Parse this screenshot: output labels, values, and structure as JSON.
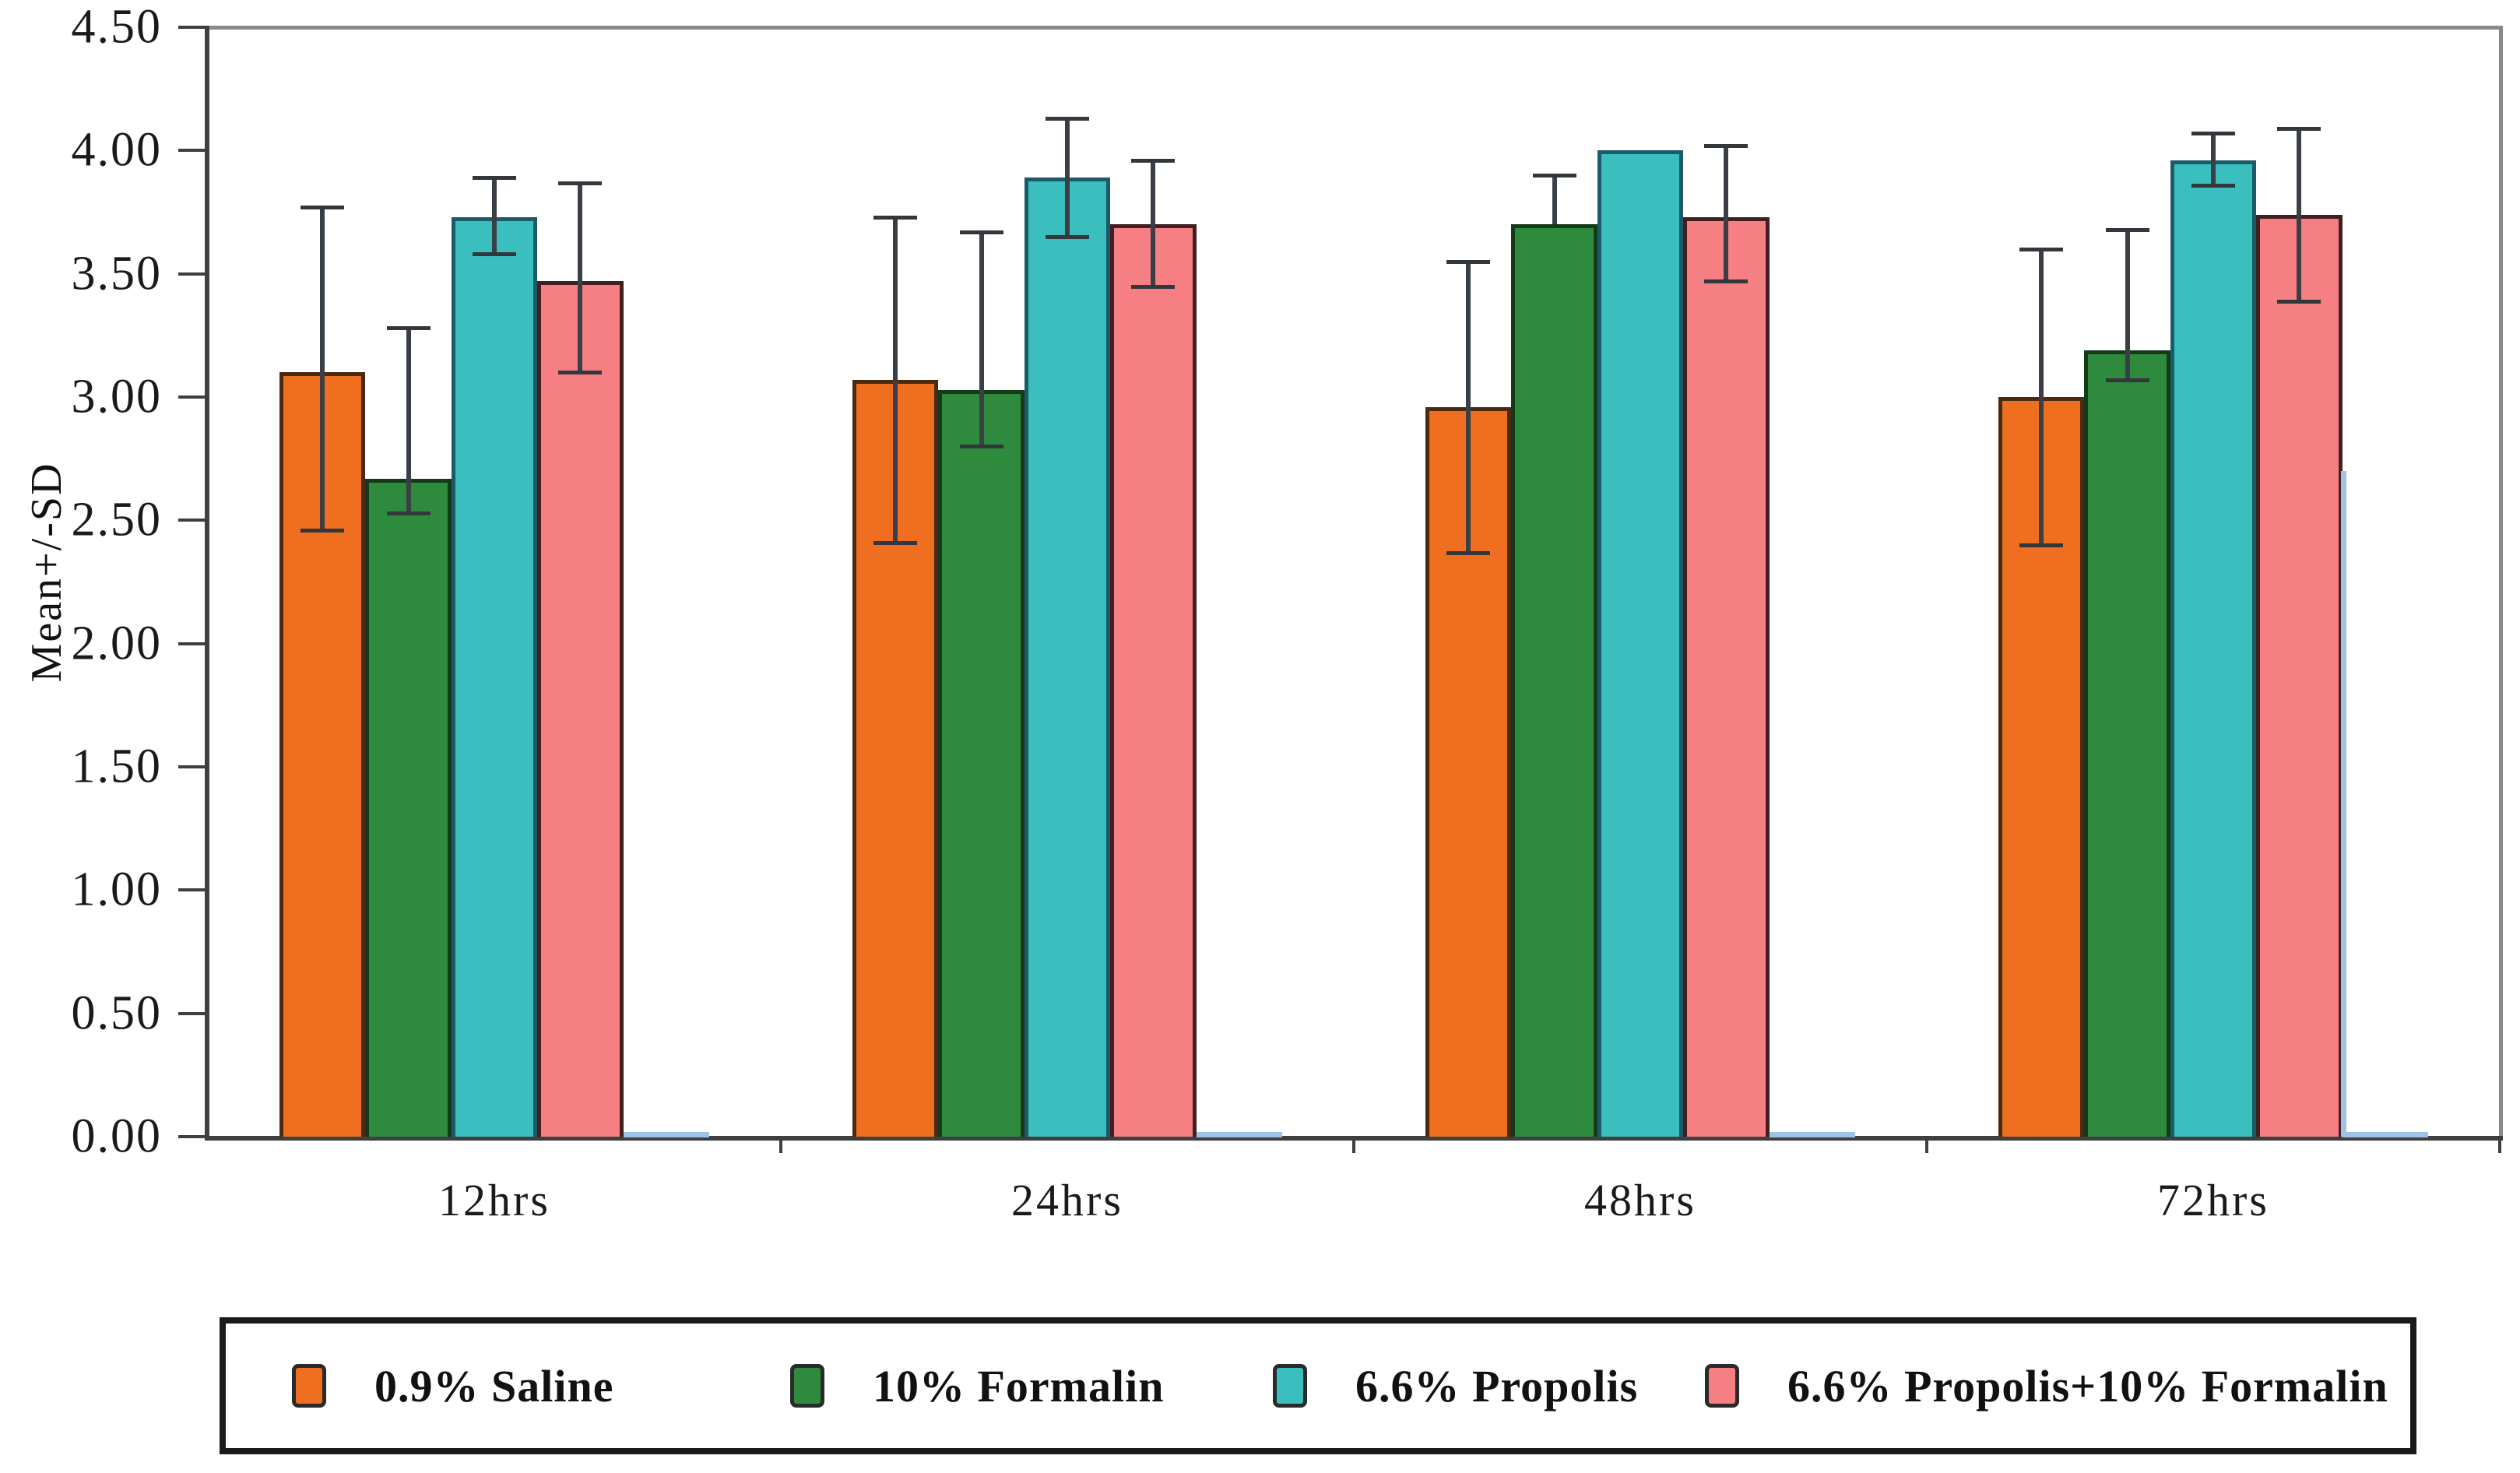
{
  "chart_data": {
    "type": "bar",
    "title": "",
    "ylabel": "Mean+/-SD",
    "xlabel": "",
    "categories": [
      "12hrs",
      "24hrs",
      "48hrs",
      "72hrs"
    ],
    "ylim": [
      0.0,
      4.5
    ],
    "ytick_step": 0.5,
    "ytick_labels": [
      "0.00",
      "0.50",
      "1.00",
      "1.50",
      "2.00",
      "2.50",
      "3.00",
      "3.50",
      "4.00",
      "4.50"
    ],
    "grid": false,
    "legend_position": "bottom",
    "series": [
      {
        "name": "0.9% Saline",
        "color": "#EF6E20",
        "border_color": "#4a2a10",
        "values": [
          3.1,
          3.07,
          2.96,
          3.0
        ],
        "err_low": [
          2.46,
          2.41,
          2.37,
          2.4
        ],
        "err_high": [
          3.77,
          3.73,
          3.55,
          3.6
        ]
      },
      {
        "name": "10% Formalin",
        "color": "#2E8B3E",
        "border_color": "#143a18",
        "values": [
          2.67,
          3.03,
          3.7,
          3.19
        ],
        "err_low": [
          2.53,
          2.8,
          3.7,
          3.07
        ],
        "err_high": [
          3.28,
          3.67,
          3.9,
          3.68
        ]
      },
      {
        "name": "6.6% Propolis",
        "color": "#3BBEBE",
        "border_color": "#1b5a68",
        "values": [
          3.73,
          3.89,
          4.0,
          3.96
        ],
        "err_low": [
          3.58,
          3.65,
          null,
          3.86
        ],
        "err_high": [
          3.89,
          4.13,
          null,
          4.07
        ]
      },
      {
        "name": "6.6% Propolis+10% Formalin",
        "color": "#F57F82",
        "border_color": "#421f23",
        "values": [
          3.47,
          3.7,
          3.73,
          3.74
        ],
        "err_low": [
          3.1,
          3.45,
          3.47,
          3.39
        ],
        "err_high": [
          3.87,
          3.96,
          4.02,
          4.09
        ]
      }
    ],
    "baseline_series": {
      "name": "near-zero blue series",
      "color": "#9dc3e6",
      "values": [
        0.01,
        0.01,
        0.01,
        0.01
      ],
      "vertical_line": {
        "category_index": 3,
        "value": 2.7
      }
    }
  }
}
